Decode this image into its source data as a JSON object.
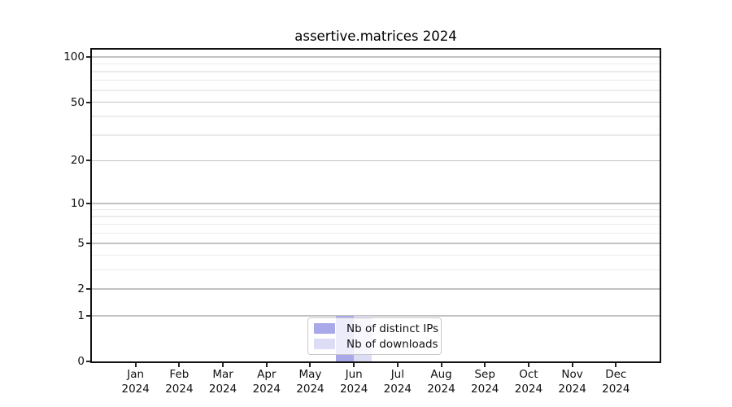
{
  "title": "assertive.matrices 2024",
  "chart_data": {
    "type": "bar",
    "title": "assertive.matrices 2024",
    "categories": [
      "Jan 2024",
      "Feb 2024",
      "Mar 2024",
      "Apr 2024",
      "May 2024",
      "Jun 2024",
      "Jul 2024",
      "Aug 2024",
      "Sep 2024",
      "Oct 2024",
      "Nov 2024",
      "Dec 2024"
    ],
    "series": [
      {
        "name": "Nb of distinct IPs",
        "color": "#a9a9ea",
        "values": [
          0,
          0,
          0,
          0,
          0,
          1,
          0,
          0,
          0,
          0,
          0,
          0
        ]
      },
      {
        "name": "Nb of downloads",
        "color": "#dcdcf5",
        "values": [
          0,
          0,
          0,
          0,
          0,
          1,
          0,
          0,
          0,
          0,
          0,
          0
        ]
      }
    ],
    "yscale": "log10(1+x)",
    "ylim": [
      0,
      112
    ],
    "y_major_ticks": [
      0,
      1,
      2,
      5,
      10,
      20,
      50,
      100
    ],
    "y_tick_labels": [
      "0",
      "1",
      "2",
      "5",
      "10",
      "20",
      "50",
      "100"
    ],
    "y_minor_gridlines": [
      3,
      4,
      6,
      7,
      8,
      9,
      30,
      40,
      60,
      70,
      80,
      90
    ],
    "grid": true,
    "legend_position": "lower center",
    "xlabel": "",
    "ylabel": ""
  },
  "colors": {
    "background": "#ffffff",
    "axis_frame": "#111111",
    "major_gridline": "#c2c2c2",
    "minor_gridline": "#ebebeb",
    "bar_distinct_ips": "#a9a9ea",
    "bar_downloads": "#dcdcf5",
    "text": "#111111"
  }
}
